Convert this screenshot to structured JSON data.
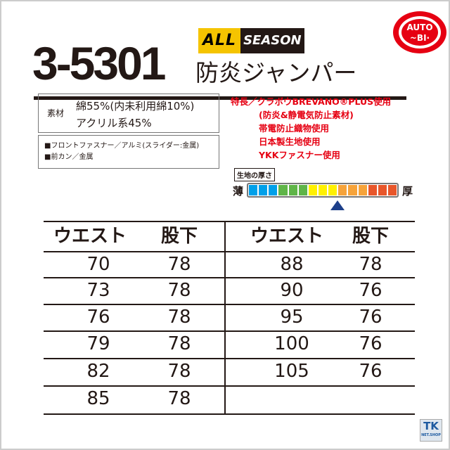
{
  "header": {
    "model": "3-5301",
    "name": "防炎ジャンパー",
    "badge_all": "ALL",
    "badge_season": "SEASON",
    "brand_logo": "AUTO-BI"
  },
  "material": {
    "label": "素材",
    "line1": "綿55%(内未利用綿10%)",
    "line2": "アクリル系45%"
  },
  "parts": [
    "■フロントファスナー／アルミ(スライダー:金属)",
    "■前カン／金属"
  ],
  "features": [
    "特長／クラボウBREVANO®PLUS使用",
    "(防炎&静電気防止素材)",
    "帯電防止織物使用",
    "日本製生地使用",
    "YKKファスナー使用"
  ],
  "thickness": {
    "label": "生地の厚さ",
    "thin": "薄",
    "thick": "厚",
    "level": 0.6,
    "segments": 15,
    "colors": [
      "#00a0e9",
      "#00a0e9",
      "#00a0e9",
      "#5fb548",
      "#5fb548",
      "#5fb548",
      "#fff000",
      "#fff000",
      "#fff000",
      "#f6a33a",
      "#f6a33a",
      "#f6a33a",
      "#e8562a",
      "#e8562a",
      "#e8562a"
    ]
  },
  "size_table": {
    "headers": [
      "ウエスト",
      "股下",
      "ウエスト",
      "股下"
    ],
    "left": [
      [
        "70",
        "78"
      ],
      [
        "73",
        "78"
      ],
      [
        "76",
        "78"
      ],
      [
        "79",
        "78"
      ],
      [
        "82",
        "78"
      ],
      [
        "85",
        "78"
      ]
    ],
    "right": [
      [
        "88",
        "78"
      ],
      [
        "90",
        "76"
      ],
      [
        "95",
        "76"
      ],
      [
        "100",
        "76"
      ],
      [
        "105",
        "76"
      ]
    ]
  },
  "shop_logo": {
    "main": "TK",
    "sub": "NET.SHOP"
  }
}
